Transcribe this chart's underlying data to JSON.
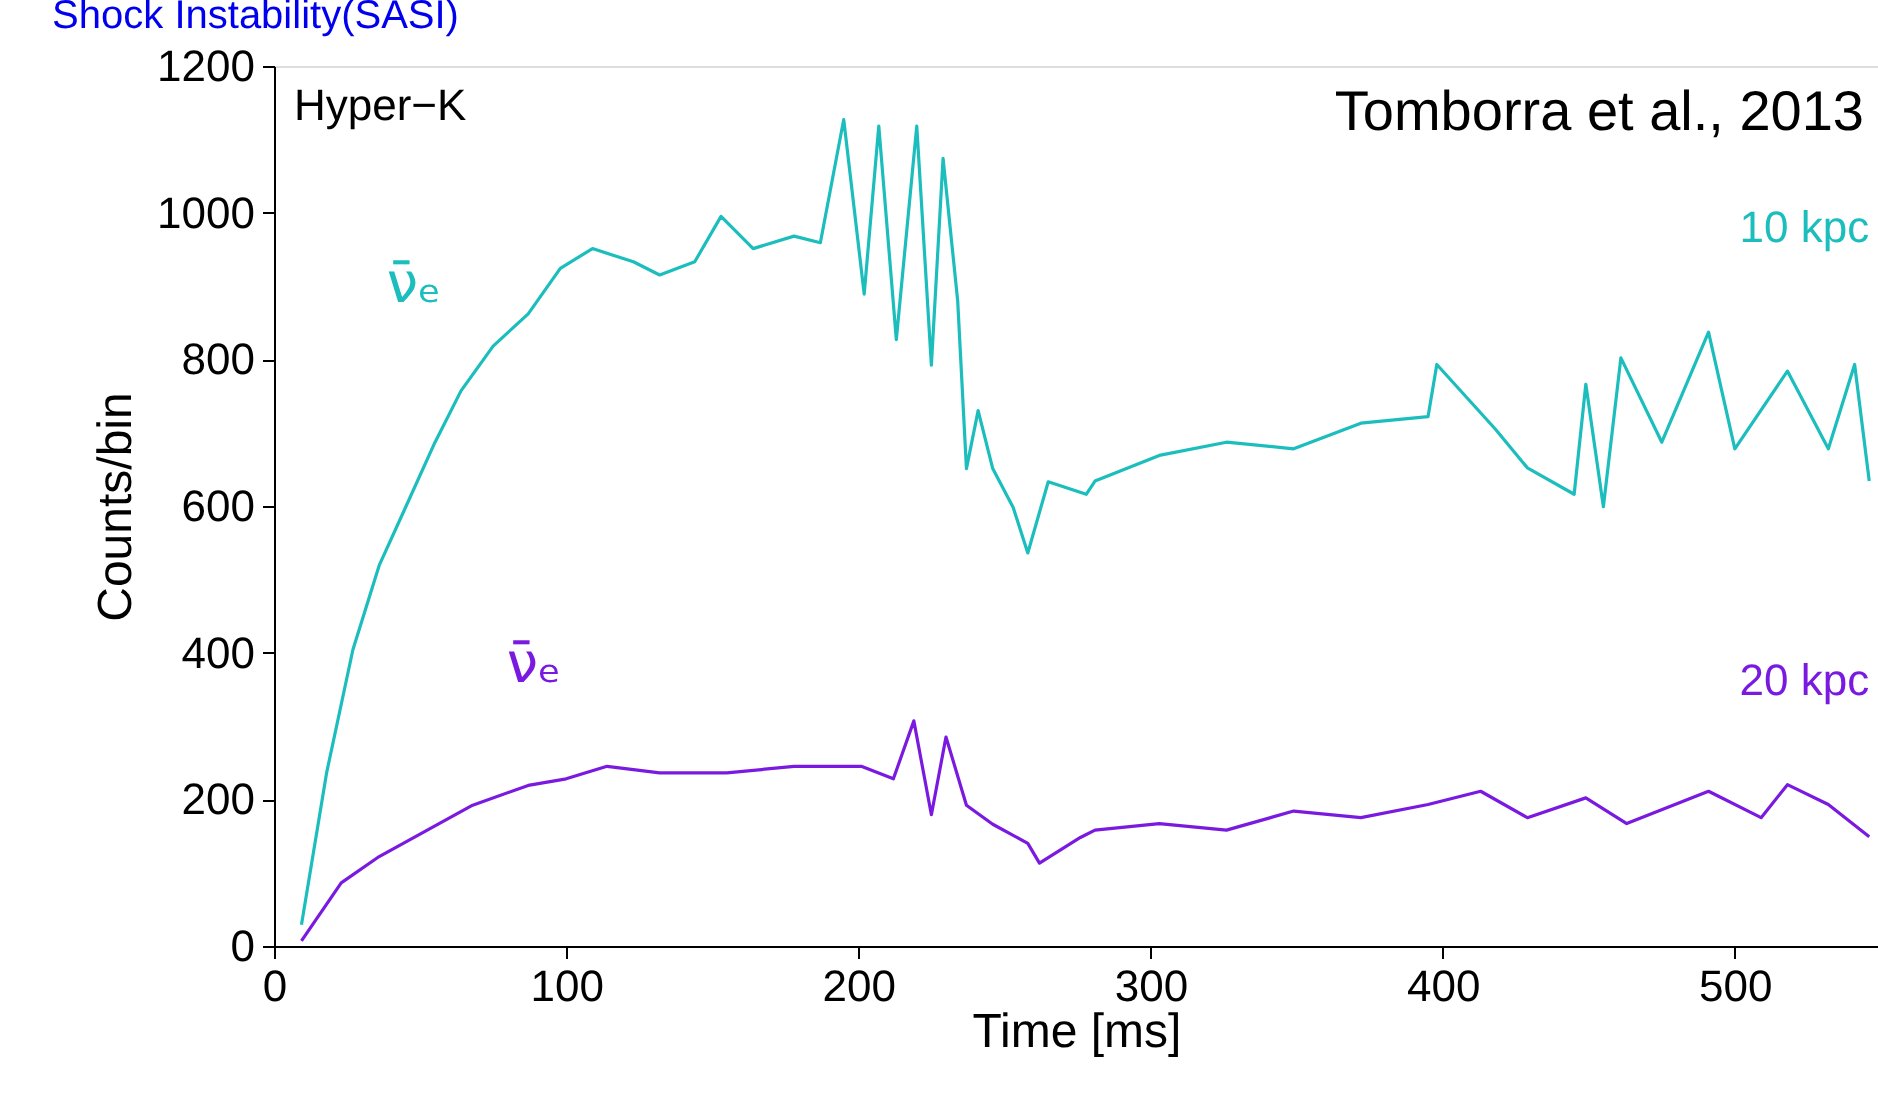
{
  "chart_data": {
    "type": "line",
    "title": "Shock Instability(SASI)",
    "xlabel": "Time [ms]",
    "ylabel": "Counts/bin",
    "xlim": [
      0,
      549
    ],
    "ylim": [
      0,
      1200
    ],
    "xticks": [
      0,
      100,
      200,
      300,
      400,
      500
    ],
    "yticks": [
      0,
      200,
      400,
      600,
      800,
      1000,
      1200
    ],
    "grid": false,
    "marker": "none",
    "line_style": "solid",
    "annotations": [
      "Hyper−K",
      "Tomborra et al., 2013",
      "ν̄ₑ",
      "ν̄ₑ"
    ],
    "series": [
      {
        "name": "10 kpc",
        "color": "#1cbdbd",
        "x": [
          9.4,
          18,
          27,
          36,
          45,
          55,
          64,
          75,
          87,
          98,
          109,
          123,
          132,
          144,
          153,
          164,
          178,
          187,
          195,
          202,
          207,
          213,
          220,
          225,
          229,
          234,
          237,
          241,
          246,
          253,
          258,
          265,
          278,
          281,
          303,
          326,
          349,
          372,
          395,
          398,
          418,
          429,
          445,
          449,
          455,
          461,
          475,
          491,
          500,
          518,
          532,
          541,
          546
        ],
        "values": [
          29,
          236,
          404,
          519,
          598,
          686,
          757,
          818,
          862,
          924,
          951,
          933,
          915,
          933,
          995,
          951,
          968,
          959,
          1127,
          889,
          1118,
          827,
          1118,
          792,
          1074,
          880,
          651,
          730,
          651,
          598,
          536,
          633,
          616,
          634,
          669,
          687,
          678,
          713,
          722,
          793,
          705,
          652,
          616,
          766,
          599,
          802,
          687,
          837,
          678,
          784,
          678,
          793,
          634
        ]
      },
      {
        "name": "20 kpc",
        "color": "#7a1ae0",
        "x": [
          9.4,
          23,
          36,
          52,
          68,
          87,
          100,
          114,
          132,
          155,
          178,
          201,
          212,
          219,
          225,
          230,
          237,
          246,
          258,
          262,
          276,
          281,
          303,
          326,
          349,
          372,
          395,
          413,
          429,
          449,
          463,
          491,
          509,
          518,
          532,
          546
        ],
        "values": [
          7,
          86,
          122,
          157,
          192,
          219,
          228,
          245,
          236,
          236,
          245,
          245,
          228,
          307,
          179,
          285,
          192,
          166,
          140,
          113,
          148,
          158,
          167,
          158,
          184,
          175,
          193,
          211,
          175,
          202,
          167,
          211,
          175,
          220,
          193,
          149
        ]
      }
    ]
  }
}
